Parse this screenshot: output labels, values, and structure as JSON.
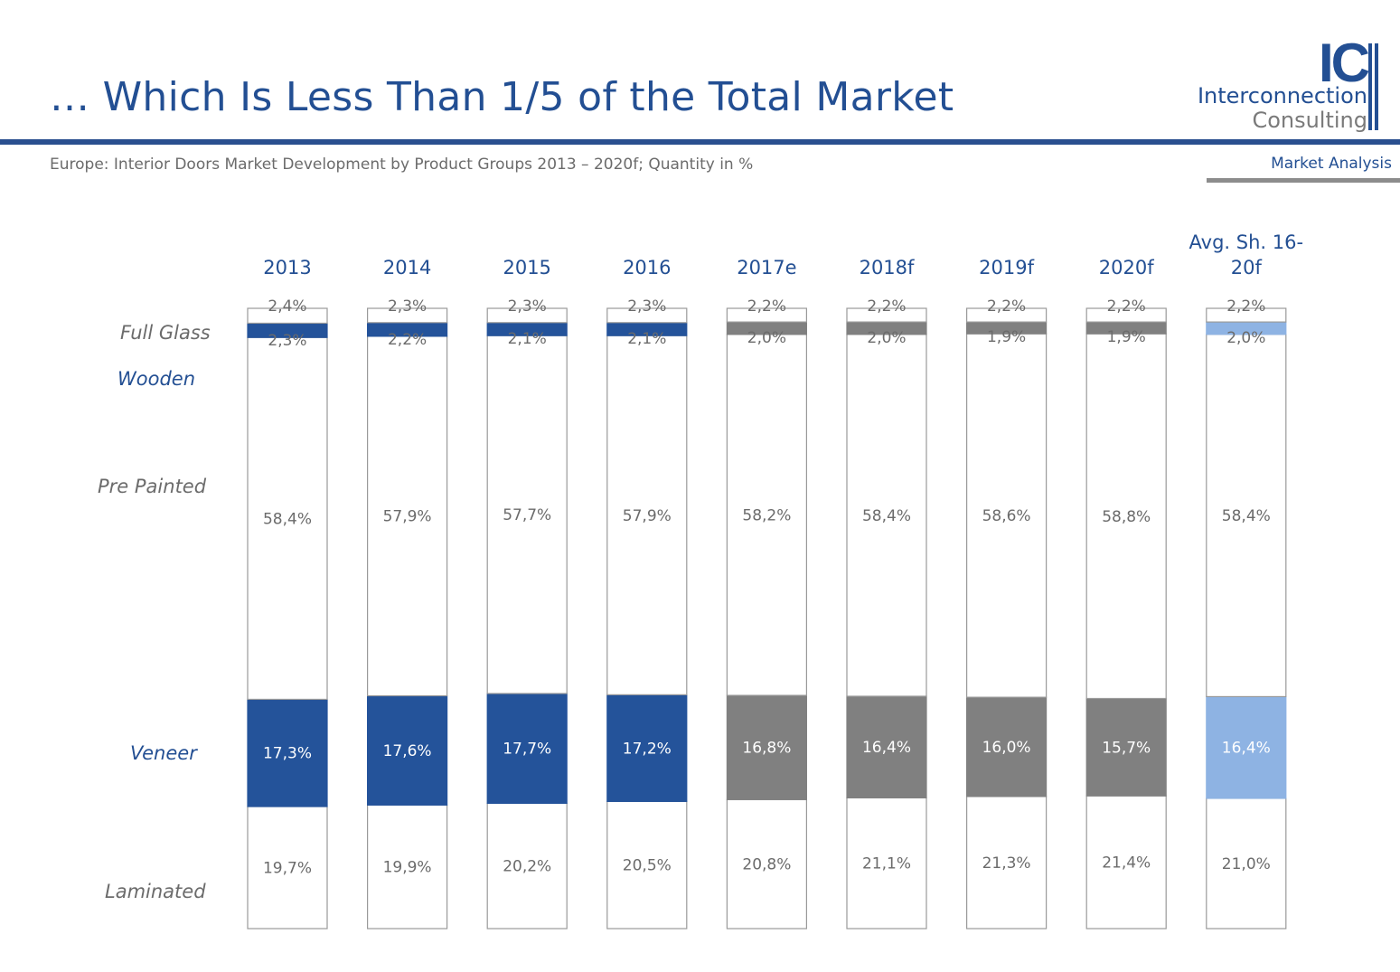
{
  "header": {
    "title": "… Which Is Less Than 1/5 of the Total Market",
    "subtitle": "Europe: Interior Doors Market Development by Product Groups  2013 – 2020f; Quantity in %",
    "section_label": "Market Analysis"
  },
  "logo": {
    "letters": "IC",
    "line1": "Interconnection",
    "line2": "Consulting"
  },
  "row_labels": {
    "full_glass": "Full Glass",
    "wooden": "Wooden",
    "pre_painted": "Pre Painted",
    "veneer": "Veneer",
    "laminated": "Laminated"
  },
  "colors": {
    "brand_blue": "#234f93",
    "actual": "#24539a",
    "forecast": "#808080",
    "average": "#8eb3e3",
    "outline": "#9a9a9a",
    "label_grey": "#6b6b6b"
  },
  "chart_data": {
    "type": "bar",
    "stacked": true,
    "categories": [
      "2013",
      "2014",
      "2015",
      "2016",
      "2017e",
      "2018f",
      "2019f",
      "2020f",
      "Avg. Sh. 16-20f"
    ],
    "category_group": [
      "actual",
      "actual",
      "actual",
      "actual",
      "forecast",
      "forecast",
      "forecast",
      "forecast",
      "average"
    ],
    "series": [
      {
        "name": "Laminated",
        "values": [
          19.7,
          19.9,
          20.2,
          20.5,
          20.8,
          21.1,
          21.3,
          21.4,
          21.0
        ],
        "labels": [
          "19,7%",
          "19,9%",
          "20,2%",
          "20,5%",
          "20,8%",
          "21,1%",
          "21,3%",
          "21,4%",
          "21,0%"
        ]
      },
      {
        "name": "Veneer",
        "values": [
          17.3,
          17.6,
          17.7,
          17.2,
          16.8,
          16.4,
          16.0,
          15.7,
          16.4
        ],
        "labels": [
          "17,3%",
          "17,6%",
          "17,7%",
          "17,2%",
          "16,8%",
          "16,4%",
          "16,0%",
          "15,7%",
          "16,4%"
        ]
      },
      {
        "name": "Pre Painted",
        "values": [
          58.4,
          57.9,
          57.7,
          57.9,
          58.2,
          58.4,
          58.6,
          58.8,
          58.4
        ],
        "labels": [
          "58,4%",
          "57,9%",
          "57,7%",
          "57,9%",
          "58,2%",
          "58,4%",
          "58,6%",
          "58,8%",
          "58,4%"
        ]
      },
      {
        "name": "Wooden",
        "values": [
          2.3,
          2.2,
          2.1,
          2.1,
          2.0,
          2.0,
          1.9,
          1.9,
          2.0
        ],
        "labels": [
          "2,3%",
          "2,2%",
          "2,1%",
          "2,1%",
          "2,0%",
          "2,0%",
          "1,9%",
          "1,9%",
          "2,0%"
        ]
      },
      {
        "name": "Full Glass",
        "values": [
          2.4,
          2.3,
          2.3,
          2.3,
          2.2,
          2.2,
          2.2,
          2.2,
          2.2
        ],
        "labels": [
          "2,4%",
          "2,3%",
          "2,3%",
          "2,3%",
          "2,2%",
          "2,2%",
          "2,2%",
          "2,2%",
          "2,2%"
        ]
      }
    ],
    "highlighted_series": [
      "Wooden",
      "Veneer"
    ],
    "ylim": [
      0,
      100
    ],
    "grid": false,
    "legend": "left row labels"
  }
}
